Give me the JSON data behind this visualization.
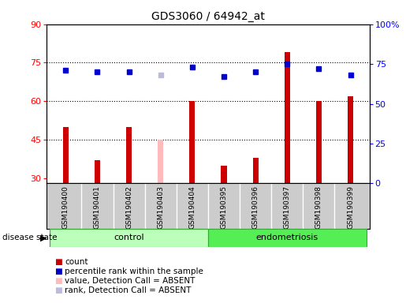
{
  "title": "GDS3060 / 64942_at",
  "samples": [
    "GSM190400",
    "GSM190401",
    "GSM190402",
    "GSM190403",
    "GSM190404",
    "GSM190395",
    "GSM190396",
    "GSM190397",
    "GSM190398",
    "GSM190399"
  ],
  "count_values": [
    50,
    37,
    50,
    45,
    60,
    35,
    38,
    79,
    60,
    62
  ],
  "count_colors": [
    "#cc0000",
    "#cc0000",
    "#cc0000",
    "#ffbbbb",
    "#cc0000",
    "#cc0000",
    "#cc0000",
    "#cc0000",
    "#cc0000",
    "#cc0000"
  ],
  "rank_values": [
    71,
    70,
    70,
    68,
    73,
    67,
    70,
    75,
    72,
    68
  ],
  "rank_colors": [
    "#0000cc",
    "#0000cc",
    "#0000cc",
    "#bbbbdd",
    "#0000cc",
    "#0000cc",
    "#0000cc",
    "#0000cc",
    "#0000cc",
    "#0000cc"
  ],
  "ylim_left": [
    28,
    90
  ],
  "ylim_right": [
    0,
    100
  ],
  "yticks_left": [
    30,
    45,
    60,
    75,
    90
  ],
  "yticks_right": [
    0,
    25,
    50,
    75,
    100
  ],
  "ytick_labels_right": [
    "0",
    "25",
    "50",
    "75",
    "100%"
  ],
  "hlines": [
    75,
    60,
    45
  ],
  "ctrl_color": "#bbffbb",
  "endo_color": "#55ee55",
  "legend_items": [
    {
      "label": "count",
      "color": "#cc0000"
    },
    {
      "label": "percentile rank within the sample",
      "color": "#0000cc"
    },
    {
      "label": "value, Detection Call = ABSENT",
      "color": "#ffbbbb"
    },
    {
      "label": "rank, Detection Call = ABSENT",
      "color": "#bbbbdd"
    }
  ]
}
